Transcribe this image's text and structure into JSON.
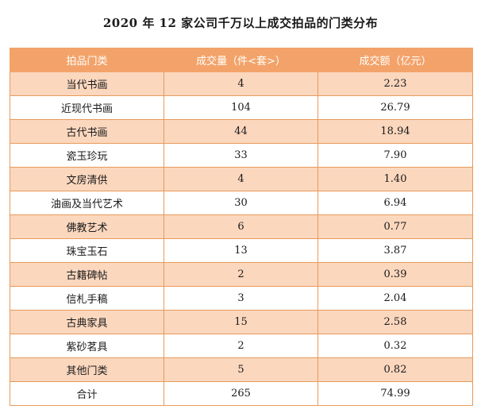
{
  "title": "2020 年 12 家公司千万以上成交拍品的门类分布",
  "table": {
    "headers": [
      "拍品门类",
      "成交量（件<套>）",
      "成交额（亿元）"
    ],
    "rows": [
      [
        "当代书画",
        "4",
        "2.23"
      ],
      [
        "近现代书画",
        "104",
        "26.79"
      ],
      [
        "古代书画",
        "44",
        "18.94"
      ],
      [
        "瓷玉珍玩",
        "33",
        "7.90"
      ],
      [
        "文房清供",
        "4",
        "1.40"
      ],
      [
        "油画及当代艺术",
        "30",
        "6.94"
      ],
      [
        "佛教艺术",
        "6",
        "0.77"
      ],
      [
        "珠宝玉石",
        "13",
        "3.87"
      ],
      [
        "古籍碑帖",
        "2",
        "0.39"
      ],
      [
        "信札手稿",
        "3",
        "2.04"
      ],
      [
        "古典家具",
        "15",
        "2.58"
      ],
      [
        "紫砂茗具",
        "2",
        "0.32"
      ],
      [
        "其他门类",
        "5",
        "0.82"
      ],
      [
        "合计",
        "265",
        "74.99"
      ]
    ]
  },
  "colors": {
    "header_bg": "#f3a36a",
    "stripe_bg": "#fbd7be",
    "border": "#e89a5a"
  }
}
